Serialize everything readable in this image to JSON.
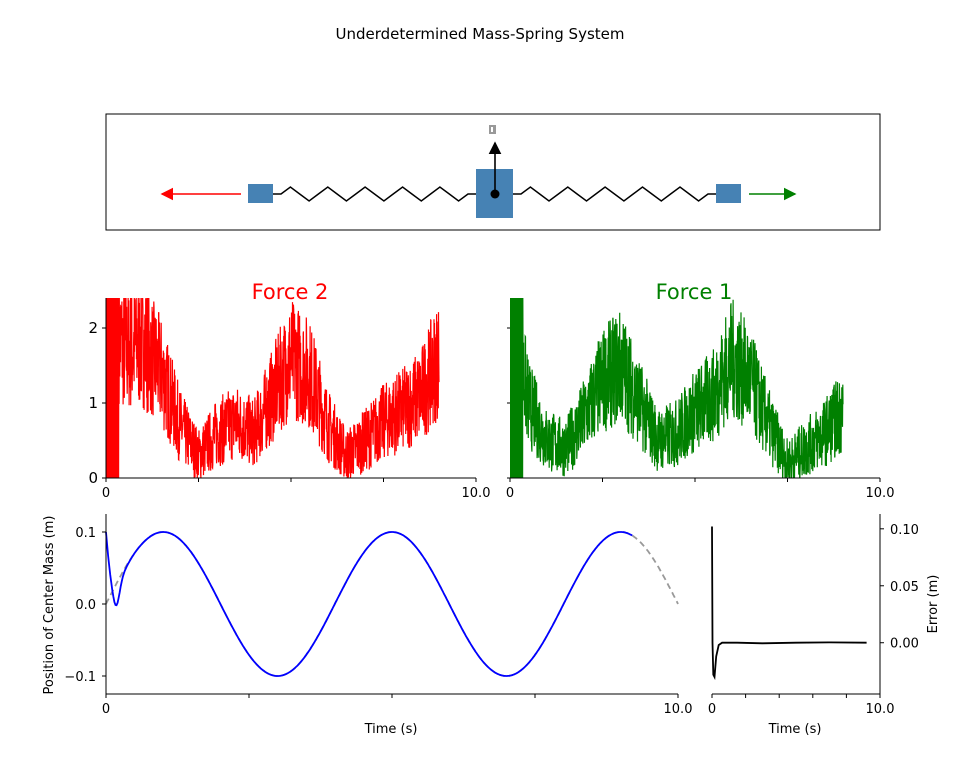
{
  "figure": {
    "title": "Underdetermined Mass-Spring System"
  },
  "diagram": {
    "colors": {
      "mass": "#4682b4",
      "spring": "#000000",
      "left_arrow": "#ff0000",
      "right_arrow": "#008000",
      "up_arrow": "#000000",
      "top_marker": "#999999"
    }
  },
  "chart_data": [
    {
      "type": "line",
      "id": "force2",
      "title": "Force 2",
      "title_color": "#ff0000",
      "color": "#ff0000",
      "xlim": [
        0,
        10
      ],
      "ylim": [
        0,
        2.4
      ],
      "xticks": [
        0,
        2.5,
        5,
        7.5,
        10
      ],
      "xtick_labels": [
        "0",
        "",
        "",
        "",
        "10.0"
      ],
      "yticks": [
        0,
        1,
        2
      ],
      "ytick_labels": [
        "0",
        "1",
        "2"
      ],
      "series": [
        {
          "x": [
            0,
            0.5,
            1,
            1.5,
            2,
            2.5,
            3,
            3.5,
            4,
            4.5,
            5,
            5.5,
            6,
            6.5,
            7,
            7.5,
            8,
            8.5,
            9
          ],
          "values": [
            2.4,
            1.7,
            1.8,
            1.4,
            0.7,
            0.3,
            0.6,
            0.75,
            0.6,
            1.1,
            1.6,
            1.4,
            0.7,
            0.3,
            0.5,
            0.75,
            0.9,
            1.1,
            1.6
          ]
        }
      ]
    },
    {
      "type": "line",
      "id": "force1",
      "title": "Force 1",
      "title_color": "#008000",
      "color": "#008000",
      "xlim": [
        0,
        10
      ],
      "ylim": [
        0,
        2.4
      ],
      "xticks": [
        0,
        2.5,
        5,
        7.5,
        10
      ],
      "xtick_labels": [
        "0",
        "",
        "",
        "",
        "10.0"
      ],
      "series": [
        {
          "x": [
            0,
            0.5,
            1,
            1.5,
            2,
            2.5,
            3,
            3.5,
            4,
            4.5,
            5,
            5.5,
            6,
            6.5,
            7,
            7.5,
            8,
            8.5,
            9
          ],
          "values": [
            2.4,
            1.0,
            0.5,
            0.4,
            0.8,
            1.3,
            1.5,
            1.0,
            0.5,
            0.6,
            0.9,
            1.1,
            1.6,
            1.3,
            0.7,
            0.2,
            0.4,
            0.6,
            0.9
          ]
        }
      ]
    },
    {
      "type": "line",
      "id": "position",
      "xlabel": "Time (s)",
      "ylabel": "Position of Center Mass (m)",
      "xlim": [
        0,
        10
      ],
      "ylim": [
        -0.125,
        0.125
      ],
      "xticks": [
        0,
        2.5,
        5,
        7.5,
        10
      ],
      "xtick_labels": [
        "0",
        "",
        "",
        "",
        "10.0"
      ],
      "yticks": [
        -0.1,
        0.0,
        0.1
      ],
      "ytick_labels": [
        "−0.1",
        "0.0",
        "0.1"
      ],
      "actual": {
        "color": "#0000ff",
        "amplitude": 0.1,
        "period": 4,
        "t_end": 9.2
      },
      "reference": {
        "color": "#999999",
        "amplitude": 0.1,
        "period": 4,
        "t_end": 10
      }
    },
    {
      "type": "line",
      "id": "error",
      "xlabel": "Time (s)",
      "ylabel": "Error (m)",
      "xlim": [
        0,
        10
      ],
      "ylim": [
        -0.045,
        0.113
      ],
      "xticks": [
        0,
        2,
        4,
        6,
        8,
        10
      ],
      "xtick_labels": [
        "0",
        "",
        "",
        "",
        "",
        "10.0"
      ],
      "yticks": [
        0.0,
        0.05,
        0.1
      ],
      "ytick_labels": [
        "0.00",
        "0.05",
        "0.10"
      ],
      "color": "#000000",
      "series": [
        {
          "x": [
            0,
            0.03,
            0.08,
            0.15,
            0.25,
            0.4,
            0.6,
            0.9,
            1.5,
            3,
            5,
            7,
            9.2
          ],
          "values": [
            0.102,
            0.0,
            -0.028,
            -0.03,
            -0.012,
            -0.002,
            0.0,
            0.0,
            0.0,
            -0.0005,
            0.0,
            0.0003,
            0.0
          ]
        }
      ]
    }
  ]
}
